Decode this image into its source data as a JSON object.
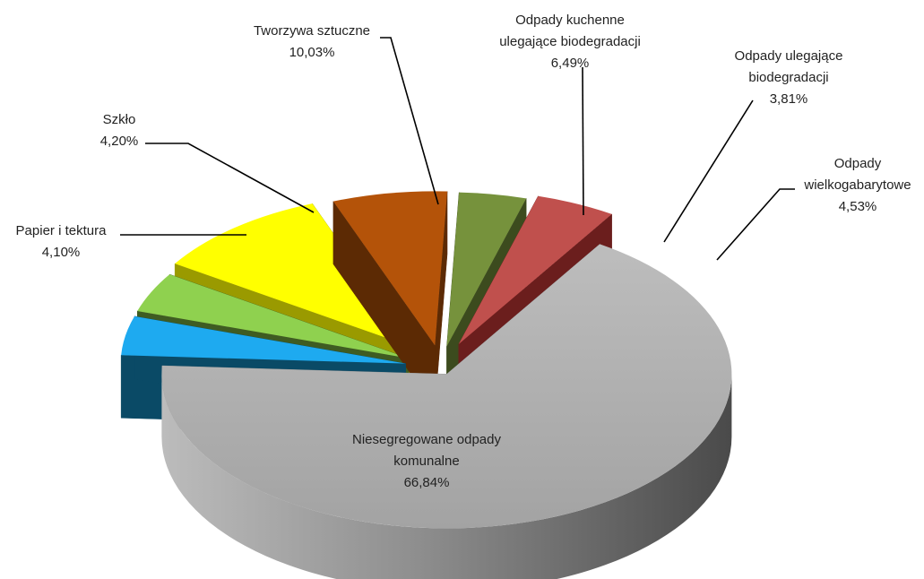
{
  "chart_data": {
    "type": "pie",
    "variant": "3d-exploded",
    "slices": [
      {
        "name_lines": [
          "Niesegregowane odpady",
          "komunalne"
        ],
        "value": 66.84,
        "value_label": "66,84%",
        "top_color": "#a6a6a6",
        "side_color": "#8a8a8a"
      },
      {
        "name_lines": [
          "Papier i tektura"
        ],
        "value": 4.1,
        "value_label": "4,10%",
        "top_color": "#1eaaf0",
        "side_color": "#0a4a66"
      },
      {
        "name_lines": [
          "Szkło"
        ],
        "value": 4.2,
        "value_label": "4,20%",
        "top_color": "#8fd14f",
        "side_color": "#3f5c22"
      },
      {
        "name_lines": [
          "Tworzywa sztuczne"
        ],
        "value": 10.03,
        "value_label": "10,03%",
        "top_color": "#ffff00",
        "side_color": "#9a9a00"
      },
      {
        "name_lines": [
          "Odpady kuchenne",
          "ulegające biodegradacji"
        ],
        "value": 6.49,
        "value_label": "6,49%",
        "top_color": "#b45309",
        "side_color": "#5c2a04"
      },
      {
        "name_lines": [
          "Odpady ulegające",
          "biodegradacji"
        ],
        "value": 3.81,
        "value_label": "3,81%",
        "top_color": "#76923c",
        "side_color": "#3c4b1e"
      },
      {
        "name_lines": [
          "Odpady",
          "wielkogabarytowe"
        ],
        "value": 4.53,
        "value_label": "4,53%",
        "top_color": "#c0504d",
        "side_color": "#6b1e1d"
      }
    ]
  }
}
